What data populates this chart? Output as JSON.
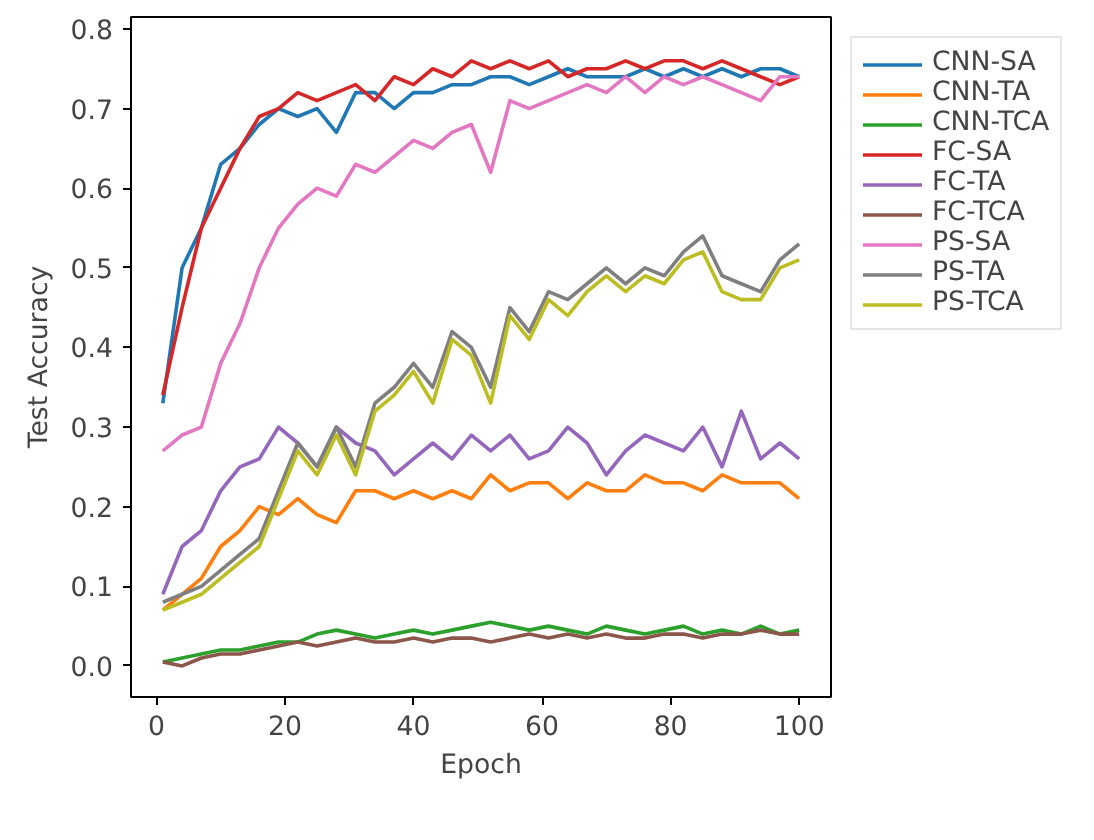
{
  "chart_data": {
    "type": "line",
    "xlabel": "Epoch",
    "ylabel": "Test Accuracy",
    "x": [
      1,
      4,
      7,
      10,
      13,
      16,
      19,
      22,
      25,
      28,
      31,
      34,
      37,
      40,
      43,
      46,
      49,
      52,
      55,
      58,
      61,
      64,
      67,
      70,
      73,
      76,
      79,
      82,
      85,
      88,
      91,
      94,
      97,
      100
    ],
    "xlim": [
      -3.95,
      104.95
    ],
    "ylim": [
      -0.039,
      0.815
    ],
    "xticks": [
      0,
      20,
      40,
      60,
      80,
      100
    ],
    "yticks": [
      {
        "value": 0,
        "label": "0.0"
      },
      {
        "value": 0.1,
        "label": "0.1"
      },
      {
        "value": 0.2,
        "label": "0.2"
      },
      {
        "value": 0.3,
        "label": "0.3"
      },
      {
        "value": 0.4,
        "label": "0.4"
      },
      {
        "value": 0.5,
        "label": "0.5"
      },
      {
        "value": 0.6,
        "label": "0.6"
      },
      {
        "value": 0.7,
        "label": "0.7"
      },
      {
        "value": 0.8,
        "label": "0.8"
      }
    ],
    "grid": false,
    "legend": "right",
    "series": [
      {
        "name": "CNN-SA",
        "color": "#1f77b4",
        "values": [
          0.33,
          0.5,
          0.55,
          0.63,
          0.65,
          0.68,
          0.7,
          0.69,
          0.7,
          0.67,
          0.72,
          0.72,
          0.7,
          0.72,
          0.72,
          0.73,
          0.73,
          0.74,
          0.74,
          0.73,
          0.74,
          0.75,
          0.74,
          0.74,
          0.74,
          0.75,
          0.74,
          0.75,
          0.74,
          0.75,
          0.74,
          0.75,
          0.75,
          0.74
        ]
      },
      {
        "name": "CNN-TA",
        "color": "#ff7f0e",
        "values": [
          0.07,
          0.09,
          0.11,
          0.15,
          0.17,
          0.2,
          0.19,
          0.21,
          0.19,
          0.18,
          0.22,
          0.22,
          0.21,
          0.22,
          0.21,
          0.22,
          0.21,
          0.24,
          0.22,
          0.23,
          0.23,
          0.21,
          0.23,
          0.22,
          0.22,
          0.24,
          0.23,
          0.23,
          0.22,
          0.24,
          0.23,
          0.23,
          0.23,
          0.21
        ]
      },
      {
        "name": "CNN-TCA",
        "color": "#2ca02c",
        "values": [
          0.005,
          0.01,
          0.015,
          0.02,
          0.02,
          0.025,
          0.03,
          0.03,
          0.04,
          0.045,
          0.04,
          0.035,
          0.04,
          0.045,
          0.04,
          0.045,
          0.05,
          0.055,
          0.05,
          0.045,
          0.05,
          0.045,
          0.04,
          0.05,
          0.045,
          0.04,
          0.045,
          0.05,
          0.04,
          0.045,
          0.04,
          0.05,
          0.04,
          0.045
        ]
      },
      {
        "name": "FC-SA",
        "color": "#d62728",
        "values": [
          0.34,
          0.45,
          0.55,
          0.6,
          0.65,
          0.69,
          0.7,
          0.72,
          0.71,
          0.72,
          0.73,
          0.71,
          0.74,
          0.73,
          0.75,
          0.74,
          0.76,
          0.75,
          0.76,
          0.75,
          0.76,
          0.74,
          0.75,
          0.75,
          0.76,
          0.75,
          0.76,
          0.76,
          0.75,
          0.76,
          0.75,
          0.74,
          0.73,
          0.74
        ]
      },
      {
        "name": "FC-TA",
        "color": "#9467bd",
        "values": [
          0.09,
          0.15,
          0.17,
          0.22,
          0.25,
          0.26,
          0.3,
          0.28,
          0.25,
          0.3,
          0.28,
          0.27,
          0.24,
          0.26,
          0.28,
          0.26,
          0.29,
          0.27,
          0.29,
          0.26,
          0.27,
          0.3,
          0.28,
          0.24,
          0.27,
          0.29,
          0.28,
          0.27,
          0.3,
          0.25,
          0.32,
          0.26,
          0.28,
          0.26
        ]
      },
      {
        "name": "FC-TCA",
        "color": "#8c564b",
        "values": [
          0.005,
          0.0,
          0.01,
          0.015,
          0.015,
          0.02,
          0.025,
          0.03,
          0.025,
          0.03,
          0.035,
          0.03,
          0.03,
          0.035,
          0.03,
          0.035,
          0.035,
          0.03,
          0.035,
          0.04,
          0.035,
          0.04,
          0.035,
          0.04,
          0.035,
          0.035,
          0.04,
          0.04,
          0.035,
          0.04,
          0.04,
          0.045,
          0.04,
          0.04
        ]
      },
      {
        "name": "PS-SA",
        "color": "#e377c2",
        "values": [
          0.27,
          0.29,
          0.3,
          0.38,
          0.43,
          0.5,
          0.55,
          0.58,
          0.6,
          0.59,
          0.63,
          0.62,
          0.64,
          0.66,
          0.65,
          0.67,
          0.68,
          0.62,
          0.71,
          0.7,
          0.71,
          0.72,
          0.73,
          0.72,
          0.74,
          0.72,
          0.74,
          0.73,
          0.74,
          0.73,
          0.72,
          0.71,
          0.74,
          0.74
        ]
      },
      {
        "name": "PS-TA",
        "color": "#7f7f7f",
        "values": [
          0.08,
          0.09,
          0.1,
          0.12,
          0.14,
          0.16,
          0.22,
          0.28,
          0.25,
          0.3,
          0.25,
          0.33,
          0.35,
          0.38,
          0.35,
          0.42,
          0.4,
          0.35,
          0.45,
          0.42,
          0.47,
          0.46,
          0.48,
          0.5,
          0.48,
          0.5,
          0.49,
          0.52,
          0.54,
          0.49,
          0.48,
          0.47,
          0.51,
          0.53
        ]
      },
      {
        "name": "PS-TCA",
        "color": "#bcbd22",
        "values": [
          0.07,
          0.08,
          0.09,
          0.11,
          0.13,
          0.15,
          0.21,
          0.27,
          0.24,
          0.29,
          0.24,
          0.32,
          0.34,
          0.37,
          0.33,
          0.41,
          0.39,
          0.33,
          0.44,
          0.41,
          0.46,
          0.44,
          0.47,
          0.49,
          0.47,
          0.49,
          0.48,
          0.51,
          0.52,
          0.47,
          0.46,
          0.46,
          0.5,
          0.51
        ]
      }
    ]
  }
}
